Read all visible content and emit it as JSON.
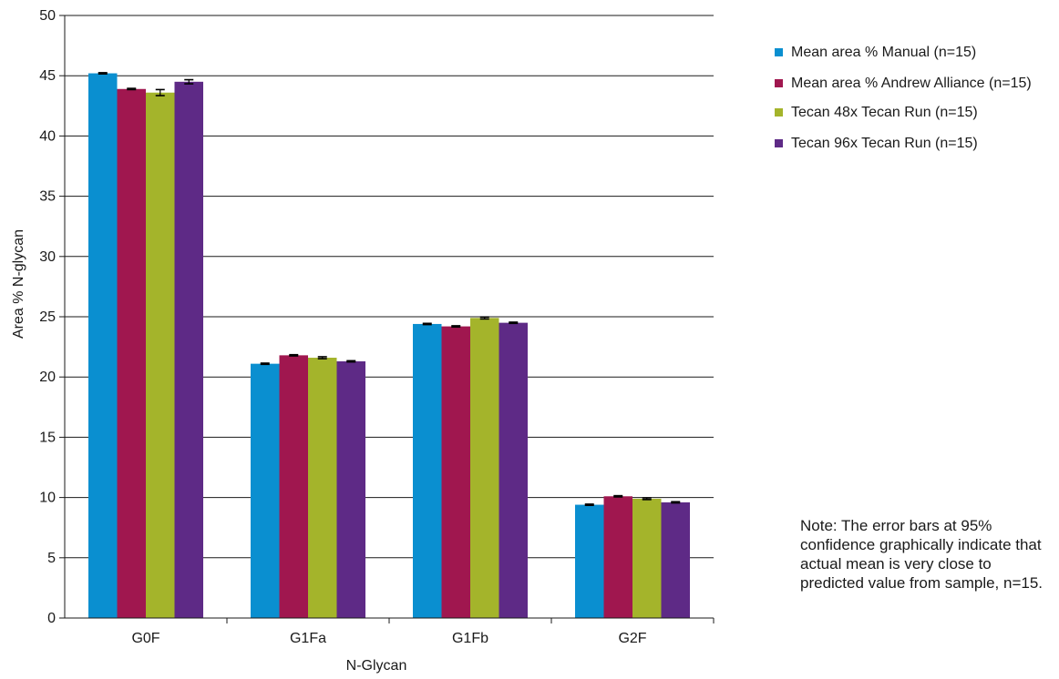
{
  "chart_data": {
    "type": "bar",
    "title": "",
    "xlabel": "N-Glycan",
    "ylabel": "Area % N-glycan",
    "ylim": [
      0,
      50
    ],
    "yticks": [
      0,
      5,
      10,
      15,
      20,
      25,
      30,
      35,
      40,
      45,
      50
    ],
    "categories": [
      "G0F",
      "G1Fa",
      "G1Fb",
      "G2F"
    ],
    "grid": true,
    "legend_position": "right",
    "series": [
      {
        "name": "Mean area % Manual (n=15)",
        "color": "#0a8fd0",
        "values": [
          45.2,
          21.1,
          24.4,
          9.4
        ],
        "errors": [
          0.05,
          0.05,
          0.05,
          0.05
        ]
      },
      {
        "name": "Mean area % Andrew Alliance (n=15)",
        "color": "#a0174f",
        "values": [
          43.9,
          21.8,
          24.2,
          10.1
        ],
        "errors": [
          0.05,
          0.05,
          0.05,
          0.05
        ]
      },
      {
        "name": "Tecan 48x Tecan Run (n=15)",
        "color": "#a4b42b",
        "values": [
          43.6,
          21.6,
          24.9,
          9.9
        ],
        "errors": [
          0.25,
          0.08,
          0.08,
          0.07
        ]
      },
      {
        "name": "Tecan 96x Tecan Run (n=15)",
        "color": "#5e2a86",
        "values": [
          44.5,
          21.3,
          24.5,
          9.6
        ],
        "errors": [
          0.17,
          0.05,
          0.05,
          0.05
        ]
      }
    ]
  },
  "legend": {
    "items": [
      "Mean area % Manual (n=15)",
      "Mean area % Andrew Alliance (n=15)",
      "Tecan 48x Tecan Run (n=15)",
      "Tecan 96x Tecan Run (n=15)"
    ]
  },
  "note": "Note: The error bars at 95% confidence graphically indicate that actual mean is very close to predicted value from sample, n=15."
}
